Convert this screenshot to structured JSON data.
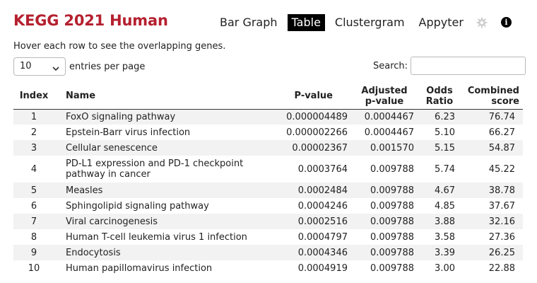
{
  "header": {
    "title": "KEGG 2021 Human",
    "nav": [
      {
        "label": "Bar Graph",
        "active": false
      },
      {
        "label": "Table",
        "active": true
      },
      {
        "label": "Clustergram",
        "active": false
      },
      {
        "label": "Appyter",
        "active": false
      }
    ],
    "icons": [
      "gear-icon",
      "info-icon"
    ],
    "info_glyph": "i"
  },
  "hint": "Hover each row to see the overlapping genes.",
  "controls": {
    "length_value": "10",
    "length_suffix": "entries per page",
    "search_label": "Search:",
    "search_value": ""
  },
  "table": {
    "headers": {
      "index": "Index",
      "name": "Name",
      "pvalue": "P-value",
      "adj_line1": "Adjusted",
      "adj_line2": "p-value",
      "odds_line1": "Odds",
      "odds_line2": "Ratio",
      "comb_line1": "Combined",
      "comb_line2": "score"
    },
    "rows": [
      {
        "index": "1",
        "name": "FoxO signaling pathway",
        "p": "0.000004489",
        "adj": "0.0004467",
        "odds": "6.23",
        "comb": "76.74"
      },
      {
        "index": "2",
        "name": "Epstein-Barr virus infection",
        "p": "0.000002266",
        "adj": "0.0004467",
        "odds": "5.10",
        "comb": "66.27"
      },
      {
        "index": "3",
        "name": "Cellular senescence",
        "p": "0.00002367",
        "adj": "0.001570",
        "odds": "5.15",
        "comb": "54.87"
      },
      {
        "index": "4",
        "name": "PD-L1 expression and PD-1 checkpoint pathway in cancer",
        "p": "0.0003764",
        "adj": "0.009788",
        "odds": "5.74",
        "comb": "45.22"
      },
      {
        "index": "5",
        "name": "Measles",
        "p": "0.0002484",
        "adj": "0.009788",
        "odds": "4.67",
        "comb": "38.78"
      },
      {
        "index": "6",
        "name": "Sphingolipid signaling pathway",
        "p": "0.0004246",
        "adj": "0.009788",
        "odds": "4.85",
        "comb": "37.67"
      },
      {
        "index": "7",
        "name": "Viral carcinogenesis",
        "p": "0.0002516",
        "adj": "0.009788",
        "odds": "3.88",
        "comb": "32.16"
      },
      {
        "index": "8",
        "name": "Human T-cell leukemia virus 1 infection",
        "p": "0.0004797",
        "adj": "0.009788",
        "odds": "3.58",
        "comb": "27.36"
      },
      {
        "index": "9",
        "name": "Endocytosis",
        "p": "0.0004346",
        "adj": "0.009788",
        "odds": "3.39",
        "comb": "26.25"
      },
      {
        "index": "10",
        "name": "Human papillomavirus infection",
        "p": "0.0004919",
        "adj": "0.009788",
        "odds": "3.00",
        "comb": "22.88"
      }
    ]
  }
}
